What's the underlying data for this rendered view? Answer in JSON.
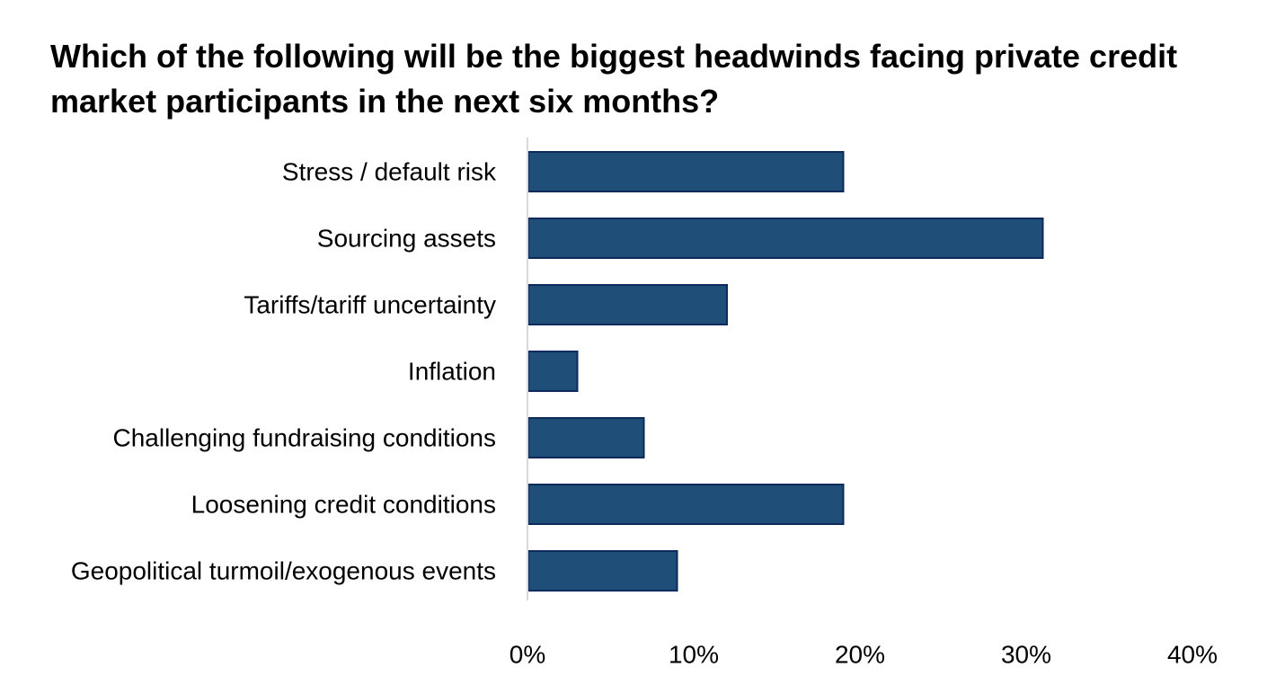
{
  "chart_data": {
    "type": "bar",
    "orientation": "horizontal",
    "title": "Which of the following will be the biggest headwinds facing private credit market participants in the next six months?",
    "categories": [
      "Stress / default risk",
      "Sourcing assets",
      "Tariffs/tariff uncertainty",
      "Inflation",
      "Challenging fundraising conditions",
      "Loosening credit conditions",
      "Geopolitical turmoil/exogenous events"
    ],
    "values": [
      19,
      31,
      12,
      3,
      7,
      19,
      9
    ],
    "xlim": [
      0,
      40
    ],
    "ticks": [
      {
        "value": 0,
        "label": "0%"
      },
      {
        "value": 10,
        "label": "10%"
      },
      {
        "value": 20,
        "label": "20%"
      },
      {
        "value": 30,
        "label": "30%"
      },
      {
        "value": 40,
        "label": "40%"
      }
    ],
    "bar_color": "#1F4E79",
    "bar_border_color": "#0E2A5C",
    "axis_color": "#D9D9D9",
    "grid": false,
    "legend": "none",
    "xlabel": "",
    "ylabel": ""
  }
}
